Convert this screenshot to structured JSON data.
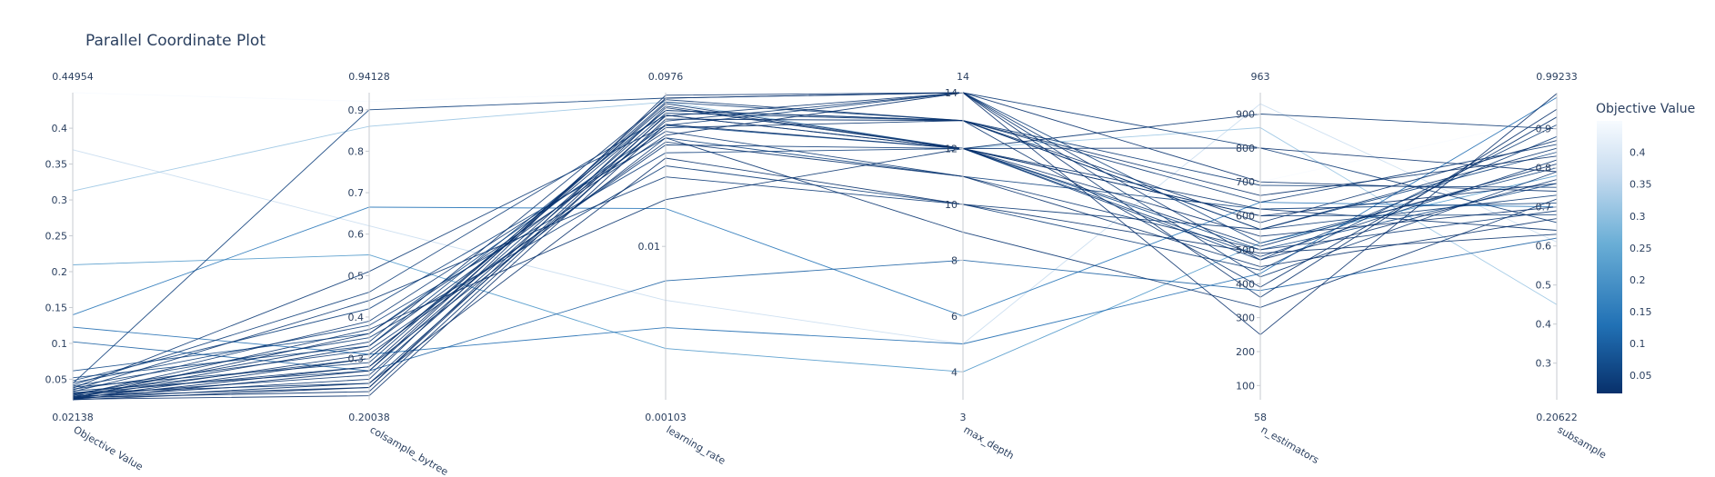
{
  "chart_data": {
    "type": "parallel_coordinates",
    "title": "Parallel Coordinate Plot",
    "colorbar": {
      "title": "Objective Value",
      "ticks": [
        0.05,
        0.1,
        0.15,
        0.2,
        0.25,
        0.3,
        0.35,
        0.4
      ],
      "range": [
        0.02138,
        0.44954
      ],
      "colors": {
        "low": "#08306b",
        "mid": "#6aaed6",
        "high": "#f7fbff"
      }
    },
    "dimensions": [
      {
        "label": "Objective Value",
        "range": [
          0.02138,
          0.44954
        ],
        "range_labels": [
          "0.02138",
          "0.44954"
        ],
        "scale": "linear",
        "ticks": [
          [
            0.05,
            "0.05"
          ],
          [
            0.1,
            "0.1"
          ],
          [
            0.15,
            "0.15"
          ],
          [
            0.2,
            "0.2"
          ],
          [
            0.25,
            "0.25"
          ],
          [
            0.3,
            "0.3"
          ],
          [
            0.35,
            "0.35"
          ],
          [
            0.4,
            "0.4"
          ]
        ]
      },
      {
        "label": "colsample_bytree",
        "range": [
          0.20038,
          0.94128
        ],
        "range_labels": [
          "0.20038",
          "0.94128"
        ],
        "scale": "linear",
        "ticks": [
          [
            0.3,
            "0.3"
          ],
          [
            0.4,
            "0.4"
          ],
          [
            0.5,
            "0.5"
          ],
          [
            0.6,
            "0.6"
          ],
          [
            0.7,
            "0.7"
          ],
          [
            0.8,
            "0.8"
          ],
          [
            0.9,
            "0.9"
          ]
        ]
      },
      {
        "label": "learning_rate",
        "range": [
          0.00103,
          0.0976
        ],
        "range_labels": [
          "0.00103",
          "0.0976"
        ],
        "scale": "log",
        "ticks": [
          [
            0.01,
            "0.01"
          ]
        ]
      },
      {
        "label": "max_depth",
        "range": [
          3,
          14
        ],
        "range_labels": [
          "3",
          "14"
        ],
        "scale": "linear",
        "ticks": [
          [
            4,
            "4"
          ],
          [
            6,
            "6"
          ],
          [
            8,
            "8"
          ],
          [
            10,
            "10"
          ],
          [
            12,
            "12"
          ],
          [
            14,
            "14"
          ]
        ]
      },
      {
        "label": "n_estimators",
        "range": [
          58,
          963
        ],
        "range_labels": [
          "58",
          "963"
        ],
        "scale": "linear",
        "ticks": [
          [
            100,
            "100"
          ],
          [
            200,
            "200"
          ],
          [
            300,
            "300"
          ],
          [
            400,
            "400"
          ],
          [
            500,
            "500"
          ],
          [
            600,
            "600"
          ],
          [
            700,
            "700"
          ],
          [
            800,
            "800"
          ],
          [
            900,
            "900"
          ]
        ]
      },
      {
        "label": "subsample",
        "range": [
          0.20622,
          0.99233
        ],
        "range_labels": [
          "0.20622",
          "0.99233"
        ],
        "scale": "linear",
        "ticks": [
          [
            0.3,
            "0.3"
          ],
          [
            0.4,
            "0.4"
          ],
          [
            0.5,
            "0.5"
          ],
          [
            0.6,
            "0.6"
          ],
          [
            0.7,
            "0.7"
          ],
          [
            0.8,
            "0.8"
          ],
          [
            0.9,
            "0.9"
          ]
        ]
      }
    ],
    "trials": [
      [
        0.44954,
        0.92,
        0.0976,
        14,
        700,
        0.93
      ],
      [
        0.37,
        0.62,
        0.0045,
        5,
        930,
        0.61
      ],
      [
        0.3125,
        0.86,
        0.085,
        12,
        860,
        0.45
      ],
      [
        0.2096,
        0.55,
        0.0022,
        4,
        520,
        0.78
      ],
      [
        0.1397,
        0.665,
        0.0175,
        6,
        640,
        0.7
      ],
      [
        0.1226,
        0.31,
        0.003,
        5,
        430,
        0.98
      ],
      [
        0.1022,
        0.27,
        0.006,
        8,
        380,
        0.62
      ],
      [
        0.0617,
        0.36,
        0.06,
        12,
        500,
        0.76
      ],
      [
        0.052,
        0.33,
        0.075,
        13,
        560,
        0.84
      ],
      [
        0.048,
        0.42,
        0.05,
        11,
        620,
        0.71
      ],
      [
        0.0452,
        0.38,
        0.04,
        12,
        470,
        0.88
      ],
      [
        0.044,
        0.9,
        0.09,
        14,
        520,
        0.8
      ],
      [
        0.042,
        0.46,
        0.07,
        12,
        600,
        0.68
      ],
      [
        0.0405,
        0.35,
        0.033,
        10,
        440,
        0.91
      ],
      [
        0.039,
        0.29,
        0.085,
        13,
        690,
        0.75
      ],
      [
        0.0375,
        0.51,
        0.06,
        14,
        800,
        0.66
      ],
      [
        0.0362,
        0.32,
        0.045,
        12,
        480,
        0.82
      ],
      [
        0.035,
        0.44,
        0.028,
        10,
        560,
        0.73
      ],
      [
        0.0338,
        0.27,
        0.072,
        13,
        640,
        0.86
      ],
      [
        0.0327,
        0.39,
        0.055,
        11,
        500,
        0.69
      ],
      [
        0.0316,
        0.24,
        0.064,
        14,
        420,
        0.79
      ],
      [
        0.0305,
        0.3,
        0.08,
        12,
        900,
        0.9
      ],
      [
        0.0296,
        0.28,
        0.05,
        9,
        330,
        0.72
      ],
      [
        0.0288,
        0.34,
        0.088,
        13,
        560,
        0.85
      ],
      [
        0.028,
        0.26,
        0.069,
        14,
        470,
        0.77
      ],
      [
        0.0273,
        0.37,
        0.02,
        12,
        620,
        0.64
      ],
      [
        0.0266,
        0.23,
        0.078,
        12,
        510,
        0.81
      ],
      [
        0.026,
        0.33,
        0.058,
        13,
        390,
        0.93
      ],
      [
        0.0254,
        0.25,
        0.094,
        14,
        700,
        0.74
      ],
      [
        0.0248,
        0.31,
        0.047,
        11,
        450,
        0.67
      ],
      [
        0.0243,
        0.22,
        0.066,
        13,
        580,
        0.87
      ],
      [
        0.0238,
        0.28,
        0.083,
        12,
        800,
        0.79
      ],
      [
        0.0234,
        0.36,
        0.052,
        14,
        360,
        0.95
      ],
      [
        0.023,
        0.24,
        0.037,
        10,
        490,
        0.63
      ],
      [
        0.0226,
        0.3,
        0.075,
        13,
        660,
        0.83
      ],
      [
        0.0222,
        0.21,
        0.061,
        12,
        540,
        0.7
      ],
      [
        0.0219,
        0.27,
        0.09,
        14,
        250,
        0.99
      ],
      [
        0.02138,
        0.23,
        0.07,
        12,
        600,
        0.76
      ]
    ]
  }
}
